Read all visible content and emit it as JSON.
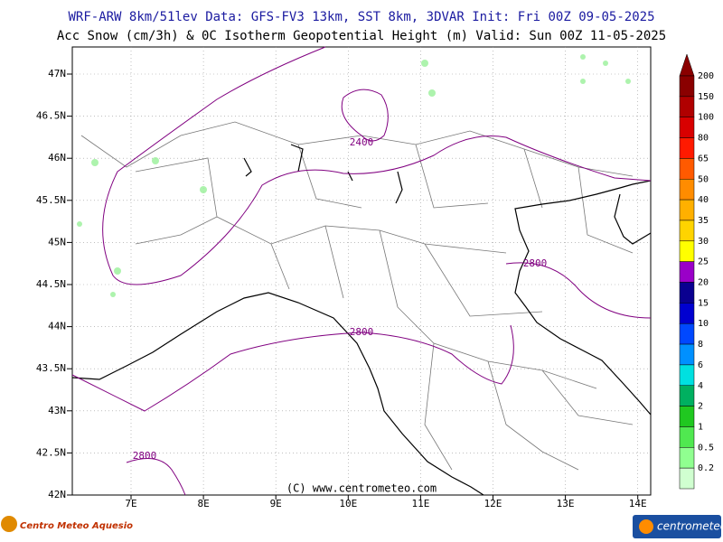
{
  "header": {
    "line1": "WRF-ARW 8km/51lev  Data: GFS-FV3 13km, SST 8km, 3DVAR  Init: Fri 00Z 09-05-2025",
    "line2": "Acc Snow (cm/3h) & 0C Isotherm Geopotential Height (m)  Valid: Sun 00Z 11-05-2025"
  },
  "map": {
    "lat_labels": [
      "47N",
      "46.5N",
      "46N",
      "45.5N",
      "45N",
      "44.5N",
      "44N",
      "43.5N",
      "43N",
      "42.5N",
      "42N"
    ],
    "lon_labels": [
      "7E",
      "8E",
      "9E",
      "10E",
      "11E",
      "12E",
      "13E",
      "14E"
    ],
    "contour_labels": [
      "2400",
      "2800",
      "2800",
      "2800"
    ],
    "credit": "(C) www.centrometeo.com"
  },
  "colorbar": {
    "labels": [
      "200",
      "150",
      "100",
      "80",
      "65",
      "50",
      "40",
      "35",
      "30",
      "25",
      "20",
      "15",
      "10",
      "8",
      "6",
      "4",
      "2",
      "1",
      "0.5",
      "0.2"
    ],
    "colors": [
      "#8a0000",
      "#b00000",
      "#d80000",
      "#ff1a00",
      "#ff5a00",
      "#ff8c00",
      "#ffb000",
      "#ffd400",
      "#ffff00",
      "#9a00c8",
      "#0a0090",
      "#0000d0",
      "#0048ff",
      "#0090ff",
      "#00e0e0",
      "#00b060",
      "#20c820",
      "#50e850",
      "#90ff90",
      "#d0ffd0"
    ]
  },
  "footer": {
    "left_logo": "Centro Meteo Aquesio",
    "right_logo": "centrometeo"
  }
}
